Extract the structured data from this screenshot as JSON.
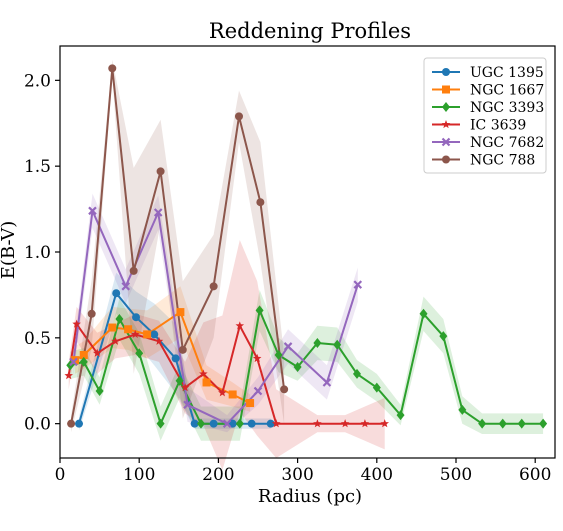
{
  "chart_data": {
    "type": "line",
    "title": "Reddening Profiles",
    "xlabel": "Radius (pc)",
    "ylabel": "E(B-V)",
    "xlim": [
      0,
      625
    ],
    "ylim": [
      -0.2,
      2.2
    ],
    "xticks": [
      0,
      100,
      200,
      300,
      400,
      500,
      600
    ],
    "yticks": [
      0.0,
      0.5,
      1.0,
      1.5,
      2.0
    ],
    "xtick_labels": [
      "0",
      "100",
      "200",
      "300",
      "400",
      "500",
      "600"
    ],
    "ytick_labels": [
      "0.0",
      "0.5",
      "1.0",
      "1.5",
      "2.0"
    ],
    "grid": false,
    "legend_position": "top-right",
    "series": [
      {
        "name": "UGC 1395",
        "color": "#1f77b4",
        "marker": "circle",
        "x": [
          24,
          71,
          96,
          119,
          146,
          170,
          194,
          218,
          242,
          266
        ],
        "y": [
          0.0,
          0.76,
          0.62,
          0.52,
          0.38,
          0.0,
          0.0,
          0.0,
          0.0,
          0.0
        ],
        "band": [
          0.04,
          0.12,
          0.15,
          0.18,
          0.2,
          0.03,
          0.03,
          0.03,
          0.03,
          0.03
        ]
      },
      {
        "name": "NGC 1667",
        "color": "#ff7f0e",
        "marker": "square",
        "x": [
          19,
          30,
          66,
          86,
          110,
          152,
          185,
          218,
          240
        ],
        "y": [
          0.37,
          0.4,
          0.56,
          0.55,
          0.52,
          0.65,
          0.24,
          0.17,
          0.12
        ],
        "band": [
          0.08,
          0.08,
          0.12,
          0.12,
          0.14,
          0.15,
          0.1,
          0.07,
          0.05
        ]
      },
      {
        "name": "NGC 3393",
        "color": "#2ca02c",
        "marker": "diamond",
        "x": [
          13,
          30,
          50,
          75,
          100,
          127,
          151,
          178,
          227,
          252,
          276,
          300,
          325,
          350,
          375,
          400,
          430,
          459,
          484,
          508,
          533,
          559,
          583,
          610
        ],
        "y": [
          0.34,
          0.36,
          0.19,
          0.61,
          0.41,
          0.0,
          0.25,
          0.0,
          0.0,
          0.66,
          0.4,
          0.33,
          0.47,
          0.46,
          0.29,
          0.21,
          0.05,
          0.64,
          0.51,
          0.08,
          0.0,
          0.0,
          0.0,
          0.0
        ],
        "band": [
          0.08,
          0.08,
          0.08,
          0.12,
          0.12,
          0.1,
          0.1,
          0.1,
          0.1,
          0.12,
          0.1,
          0.08,
          0.1,
          0.1,
          0.08,
          0.08,
          0.06,
          0.1,
          0.1,
          0.08,
          0.06,
          0.06,
          0.06,
          0.06
        ]
      },
      {
        "name": "IC 3639",
        "color": "#d62728",
        "marker": "star",
        "x": [
          11,
          21,
          47,
          70,
          95,
          125,
          158,
          181,
          205,
          227,
          249,
          273,
          325,
          360,
          385,
          410
        ],
        "y": [
          0.28,
          0.58,
          0.41,
          0.48,
          0.52,
          0.48,
          0.21,
          0.29,
          0.18,
          0.57,
          0.38,
          0.0,
          0.0,
          0.0,
          0.0,
          0.0
        ],
        "band": [
          0.08,
          0.1,
          0.12,
          0.1,
          0.12,
          0.12,
          0.15,
          0.3,
          0.45,
          0.5,
          0.45,
          0.2,
          0.05,
          0.05,
          0.1,
          0.15
        ]
      },
      {
        "name": "NGC 7682",
        "color": "#9467bd",
        "marker": "x",
        "x": [
          17,
          41,
          83,
          124,
          161,
          211,
          250,
          288,
          337,
          376
        ],
        "y": [
          0.36,
          1.24,
          0.8,
          1.23,
          0.11,
          0.0,
          0.19,
          0.45,
          0.24,
          0.81
        ],
        "band": [
          0.08,
          0.1,
          0.1,
          0.1,
          0.1,
          0.05,
          0.08,
          0.1,
          0.1,
          0.1
        ]
      },
      {
        "name": "NGC 788",
        "color": "#8c564b",
        "marker": "circle",
        "x": [
          14,
          40,
          66,
          93,
          127,
          155,
          194,
          226,
          253,
          283
        ],
        "y": [
          0.0,
          0.64,
          2.07,
          0.89,
          1.47,
          0.43,
          0.8,
          1.79,
          1.29,
          0.2
        ],
        "band": [
          0.05,
          0.2,
          0.05,
          0.6,
          0.3,
          0.4,
          0.3,
          0.15,
          0.35,
          0.2
        ]
      }
    ]
  }
}
